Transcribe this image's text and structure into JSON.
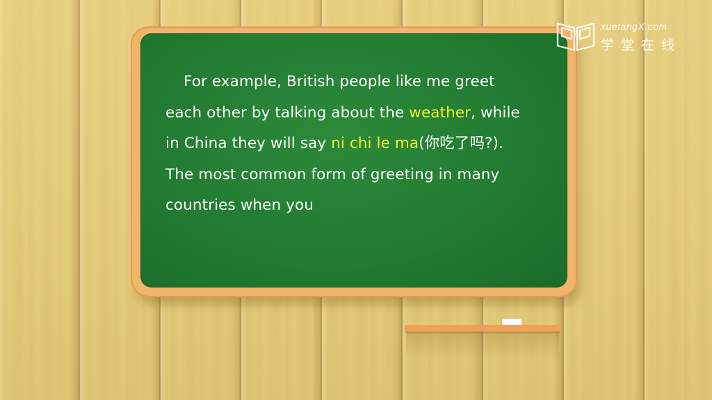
{
  "board": {
    "lines": [
      [
        {
          "text": "For example, British people like me greet"
        }
      ],
      [
        {
          "text": "each other by talking about the "
        },
        {
          "text": "weather",
          "hl": true
        },
        {
          "text": ", while"
        }
      ],
      [
        {
          "text": "in China they will say "
        },
        {
          "text": "ni chi le ma",
          "hl": true
        },
        {
          "text": "(你吃了吗?)."
        }
      ],
      [
        {
          "text": "The most common form of greeting in many"
        }
      ],
      [
        {
          "text": "countries when you"
        }
      ]
    ]
  },
  "watermark": {
    "site": "xuetangX.com",
    "name_cn": "学堂在线",
    "icon": "open-book-logo-icon"
  },
  "colors": {
    "board": "#217a30",
    "frame": "#f0b46a",
    "highlight": "#f4f230",
    "text": "#ffffff"
  }
}
